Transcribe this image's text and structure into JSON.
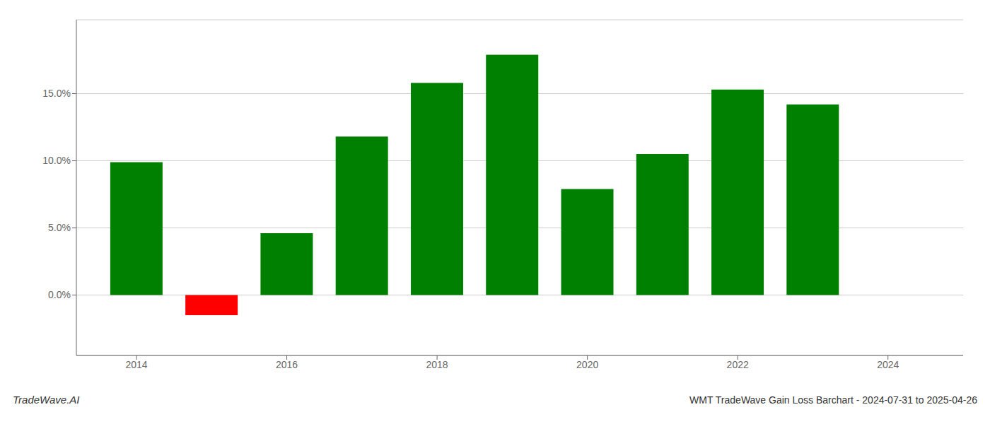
{
  "chart_data": {
    "type": "bar",
    "title": "WMT TradeWave Gain Loss Barchart - 2024-07-31 to 2025-04-26",
    "annotations": [
      "TradeWave.AI"
    ],
    "x": [
      2014,
      2015,
      2016,
      2017,
      2018,
      2019,
      2020,
      2021,
      2022,
      2023
    ],
    "values": [
      0.099,
      -0.015,
      0.046,
      0.118,
      0.158,
      0.179,
      0.079,
      0.105,
      0.153,
      0.142
    ],
    "colors": [
      "#008000",
      "#ff0000",
      "#008000",
      "#008000",
      "#008000",
      "#008000",
      "#008000",
      "#008000",
      "#008000",
      "#008000"
    ],
    "xlim": [
      2013.2,
      2025.0
    ],
    "xticks": [
      2014,
      2016,
      2018,
      2020,
      2022,
      2024
    ],
    "ylim": [
      -0.045,
      0.205
    ],
    "yticks": [
      {
        "value": 0.0,
        "label": "0.0%"
      },
      {
        "value": 0.05,
        "label": "5.0%"
      },
      {
        "value": 0.1,
        "label": "10.0%"
      },
      {
        "value": 0.15,
        "label": "15.0%"
      }
    ],
    "grid": true
  }
}
